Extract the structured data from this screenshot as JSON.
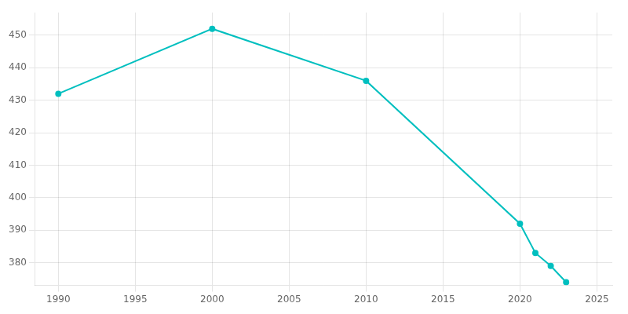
{
  "chart_data": {
    "type": "line",
    "x": [
      1990,
      2000,
      2010,
      2020,
      2021,
      2022,
      2023
    ],
    "values": [
      432,
      452,
      436,
      392,
      383,
      379,
      374
    ],
    "color": "#00BFBF",
    "marker": "circle",
    "xlim": [
      1988.5,
      2026
    ],
    "xticks": [
      1990,
      1995,
      2000,
      2005,
      2010,
      2015,
      2020,
      2025
    ],
    "ylim": [
      373,
      457
    ],
    "yticks": [
      380,
      390,
      400,
      410,
      420,
      430,
      440,
      450
    ],
    "grid": true
  }
}
